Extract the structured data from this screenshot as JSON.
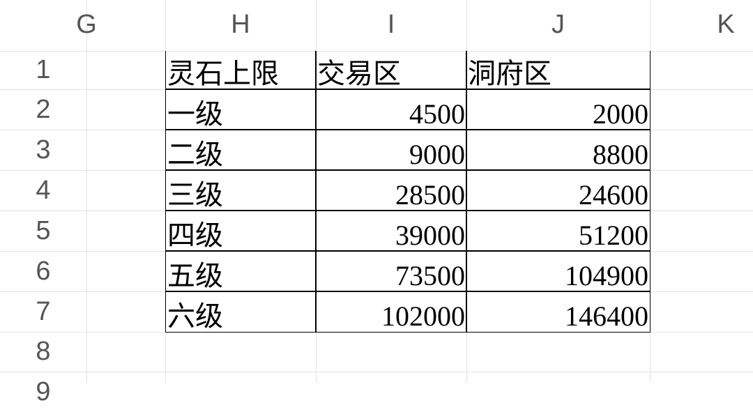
{
  "columns": [
    "G",
    "H",
    "I",
    "J",
    "K"
  ],
  "rows": [
    "1",
    "2",
    "3",
    "4",
    "5",
    "6",
    "7",
    "8",
    "9"
  ],
  "table": {
    "headers": [
      "灵石上限",
      "交易区",
      "洞府区"
    ],
    "rows": [
      [
        "一级",
        "4500",
        "2000"
      ],
      [
        "二级",
        "9000",
        "8800"
      ],
      [
        "三级",
        "28500",
        "24600"
      ],
      [
        "四级",
        "39000",
        "51200"
      ],
      [
        "五级",
        "73500",
        "104900"
      ],
      [
        "六级",
        "102000",
        "146400"
      ]
    ]
  }
}
